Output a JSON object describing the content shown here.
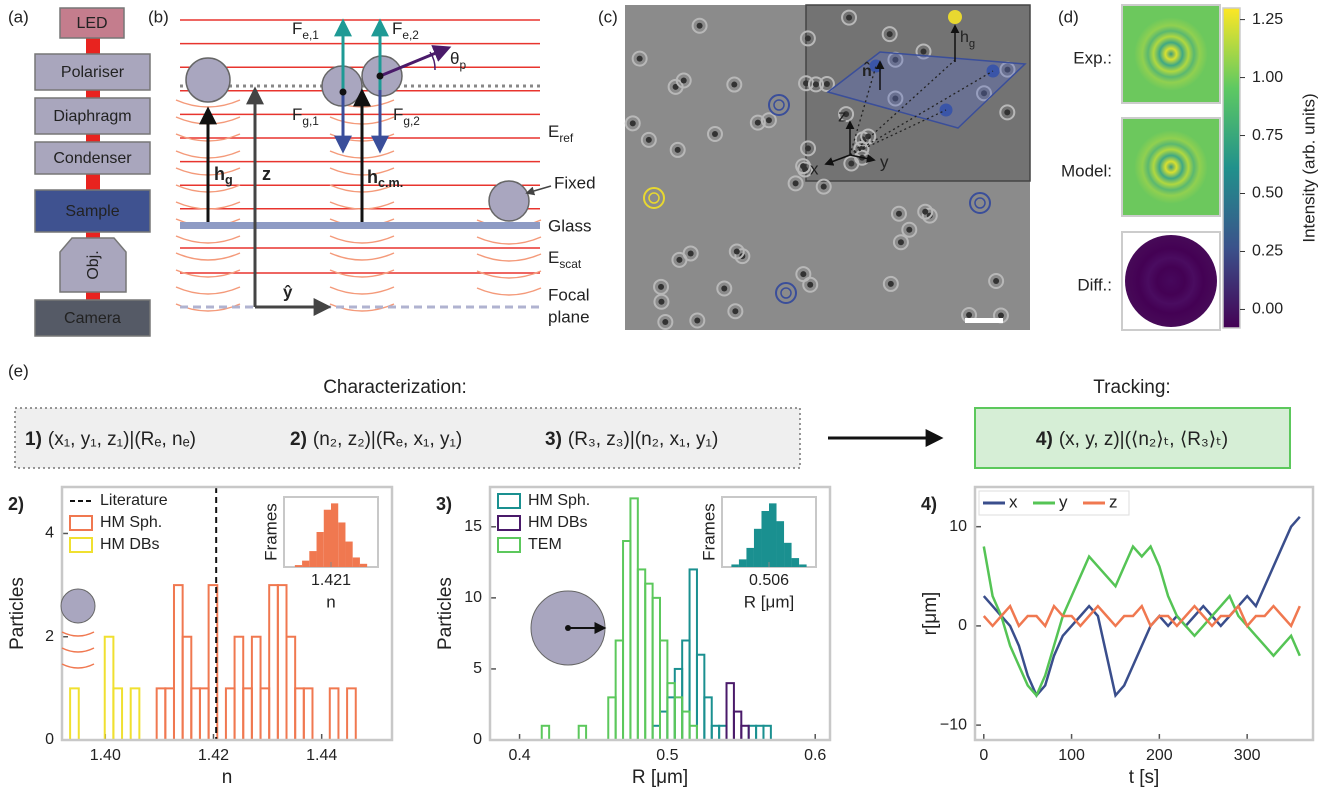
{
  "panel_labels": [
    "(a)",
    "(b)",
    "(c)",
    "(d)",
    "(e)"
  ],
  "setup": [
    "LED",
    "Polariser",
    "Diaphragm",
    "Condenser",
    "Sample",
    "Obj.",
    "Camera"
  ],
  "geometry": {
    "f_e1": {
      "base": "F",
      "sub": "e,1"
    },
    "f_e2": {
      "base": "F",
      "sub": "e,2"
    },
    "f_g1": {
      "base": "F",
      "sub": "g,1"
    },
    "f_g2": {
      "base": "F",
      "sub": "g,2"
    },
    "theta": {
      "base": "θ",
      "sub": "p"
    },
    "h_g": {
      "base": "h",
      "sub": "g"
    },
    "z": "z",
    "h_cm": {
      "base": "h",
      "sub": "c.m."
    },
    "fixed": "Fixed",
    "e_ref": {
      "base": "E",
      "sub": "ref"
    },
    "glass": "Glass",
    "e_scat": {
      "base": "E",
      "sub": "scat"
    },
    "y_hat": "ŷ",
    "focal_plane": [
      "Focal",
      "plane"
    ]
  },
  "image": {
    "h_g": {
      "base": "h",
      "sub": "g"
    },
    "n_hat": "n̂",
    "axes": [
      "x",
      "y",
      "z"
    ]
  },
  "holograms": {
    "rows": [
      "Exp.:",
      "Model:",
      "Diff.:"
    ],
    "colorbar": {
      "label": "Intensity (arb. units)",
      "lim": [
        -0.08,
        1.3
      ],
      "ticks": [
        {
          "value": 0,
          "label": "0.00"
        },
        {
          "value": 0.25,
          "label": "0.25"
        },
        {
          "value": 0.5,
          "label": "0.50"
        },
        {
          "value": 0.75,
          "label": "0.75"
        },
        {
          "value": 1,
          "label": "1.00"
        },
        {
          "value": 1.25,
          "label": "1.25"
        }
      ]
    }
  },
  "workflow": {
    "characterization": "Characterization:",
    "tracking": "Tracking:",
    "steps": [
      {
        "num": "1)",
        "text": "(x₁, y₁, z₁)|(Rₑ, nₑ)"
      },
      {
        "num": "2)",
        "text": "(n₂, z₂)|(Rₑ, x₁, y₁)"
      },
      {
        "num": "3)",
        "text": "(R₃, z₃)|(n₂, x₁, y₁)"
      },
      {
        "num": "4)",
        "text": "(x, y, z)|(⟨n₂⟩ₜ, ⟨R₃⟩ₜ)"
      }
    ]
  },
  "chart_data": [
    {
      "type": "histogram",
      "panel": "2)",
      "xlabel": "n",
      "ylabel": "Particles",
      "xlim": [
        1.392,
        1.453
      ],
      "ylim": [
        0,
        4.9
      ],
      "xticks": [
        {
          "value": 1.4,
          "label": "1.40"
        },
        {
          "value": 1.42,
          "label": "1.42"
        },
        {
          "value": 1.44,
          "label": "1.44"
        }
      ],
      "yticks": [
        0,
        2,
        4
      ],
      "reference": {
        "name": "Literature",
        "value": 1.4205
      },
      "series": [
        {
          "name": "HM Sph.",
          "color": "#f07850",
          "bins": [
            1.4095,
            1.4111,
            1.4127,
            1.4143,
            1.4159,
            1.4175,
            1.4191,
            1.4207,
            1.4223,
            1.4239,
            1.4255,
            1.4271,
            1.4287,
            1.4303,
            1.4319,
            1.4335,
            1.4351,
            1.4367,
            1.4383,
            1.4399,
            1.4415,
            1.4431,
            1.4447,
            1.4463
          ],
          "values": [
            1,
            1,
            3,
            2,
            1,
            1,
            3,
            0,
            1,
            2,
            1,
            2,
            1,
            3,
            3,
            2,
            1,
            1,
            0,
            0,
            1,
            0,
            1
          ]
        },
        {
          "name": "HM DBs",
          "color": "#f0e030",
          "bins": [
            1.3935,
            1.3951,
            1.3967,
            1.3983,
            1.3999,
            1.4015,
            1.4031,
            1.4047,
            1.4063
          ],
          "values": [
            1,
            0,
            0,
            0,
            2,
            1,
            0,
            1
          ]
        }
      ],
      "inset": {
        "ylabel": "Frames",
        "xlabel": "n",
        "xlim": [
          1.4184,
          1.4236
        ],
        "ylim": [
          0,
          110
        ],
        "xticks": [
          1.421
        ],
        "color": "#f07850",
        "bins": [
          1.419,
          1.4194,
          1.4198,
          1.4202,
          1.4206,
          1.421,
          1.4214,
          1.4218,
          1.4222,
          1.4226,
          1.423
        ],
        "values": [
          3,
          10,
          25,
          55,
          90,
          100,
          70,
          40,
          15,
          5
        ]
      }
    },
    {
      "type": "histogram",
      "panel": "3)",
      "xlabel": "R [μm]",
      "ylabel": "Particles",
      "xlim": [
        0.38,
        0.61
      ],
      "ylim": [
        0,
        17.8
      ],
      "xticks": [
        0.4,
        0.5,
        0.6
      ],
      "yticks": [
        0,
        5,
        10,
        15
      ],
      "series": [
        {
          "name": "HM Sph.",
          "color": "#1a9090",
          "bins": [
            0.49,
            0.495,
            0.5,
            0.505,
            0.51,
            0.515,
            0.52,
            0.525,
            0.53,
            0.535,
            0.54,
            0.545,
            0.55,
            0.555,
            0.56,
            0.565,
            0.57
          ],
          "values": [
            1,
            2,
            3,
            5,
            7,
            12,
            6,
            3,
            1,
            1,
            0,
            0,
            0,
            1,
            1,
            1
          ]
        },
        {
          "name": "HM DBs",
          "color": "#4a1a6a",
          "bins": [
            0.54,
            0.545,
            0.55,
            0.555
          ],
          "values": [
            4,
            2,
            1
          ]
        },
        {
          "name": "TEM",
          "color": "#5cc85c",
          "bins": [
            0.415,
            0.42,
            0.425,
            0.43,
            0.435,
            0.44,
            0.445,
            0.45,
            0.455,
            0.46,
            0.465,
            0.47,
            0.475,
            0.48,
            0.485,
            0.49,
            0.495,
            0.5,
            0.505,
            0.51,
            0.515,
            0.52,
            0.525,
            0.53
          ],
          "values": [
            1,
            0,
            0,
            0,
            0,
            1,
            0,
            0,
            0,
            3,
            7,
            14,
            17,
            12,
            11,
            10,
            7,
            4,
            3,
            2,
            1,
            0,
            0
          ]
        }
      ],
      "inset": {
        "ylabel": "Frames",
        "xlabel": "R [μm]",
        "xlim": [
          0.4985,
          0.5135
        ],
        "ylim": [
          0,
          110
        ],
        "xticks": [
          0.506
        ],
        "color": "#1a9090",
        "bins": [
          0.5,
          0.5012,
          0.5024,
          0.5036,
          0.5048,
          0.506,
          0.5072,
          0.5084,
          0.5096,
          0.5108,
          0.512
        ],
        "values": [
          4,
          12,
          30,
          60,
          88,
          100,
          72,
          38,
          14,
          4
        ]
      }
    },
    {
      "type": "line",
      "panel": "4)",
      "xlabel": "t [s]",
      "ylabel": "r[μm]",
      "xlim": [
        -10,
        375
      ],
      "ylim": [
        -11.5,
        14
      ],
      "xticks": [
        0,
        100,
        200,
        300
      ],
      "yticks": [
        {
          "value": -10,
          "label": "−10"
        },
        0,
        10
      ],
      "x": [
        0,
        10,
        20,
        30,
        40,
        50,
        60,
        70,
        80,
        90,
        100,
        110,
        120,
        130,
        140,
        150,
        160,
        170,
        180,
        190,
        200,
        210,
        220,
        230,
        240,
        250,
        260,
        270,
        280,
        290,
        300,
        310,
        320,
        330,
        340,
        350,
        360
      ],
      "series": [
        {
          "name": "x",
          "color": "#3a4e8c",
          "values": [
            3,
            2,
            1,
            0,
            -2,
            -5,
            -7,
            -6,
            -3,
            -1,
            0,
            1,
            2,
            1,
            -3,
            -7,
            -6,
            -4,
            -2,
            0,
            1,
            0,
            1,
            0,
            1,
            2,
            1,
            0,
            1,
            2,
            3,
            2,
            4,
            6,
            8,
            10,
            11
          ]
        },
        {
          "name": "y",
          "color": "#55c455",
          "values": [
            8,
            3,
            1,
            -2,
            -4,
            -6,
            -7,
            -5,
            -2,
            1,
            3,
            5,
            7,
            6,
            5,
            4,
            6,
            8,
            7,
            8,
            6,
            3,
            1,
            0,
            -1,
            0,
            1,
            2,
            3,
            1,
            0,
            -1,
            -2,
            -3,
            -2,
            -1,
            -3
          ]
        },
        {
          "name": "z",
          "color": "#f07850",
          "values": [
            1,
            0,
            1,
            2,
            0,
            1,
            1,
            0,
            2,
            1,
            1,
            0,
            1,
            2,
            1,
            0,
            1,
            1,
            2,
            0,
            1,
            1,
            0,
            1,
            2,
            1,
            0,
            1,
            1,
            2,
            0,
            1,
            1,
            2,
            1,
            0,
            2
          ]
        }
      ]
    }
  ]
}
